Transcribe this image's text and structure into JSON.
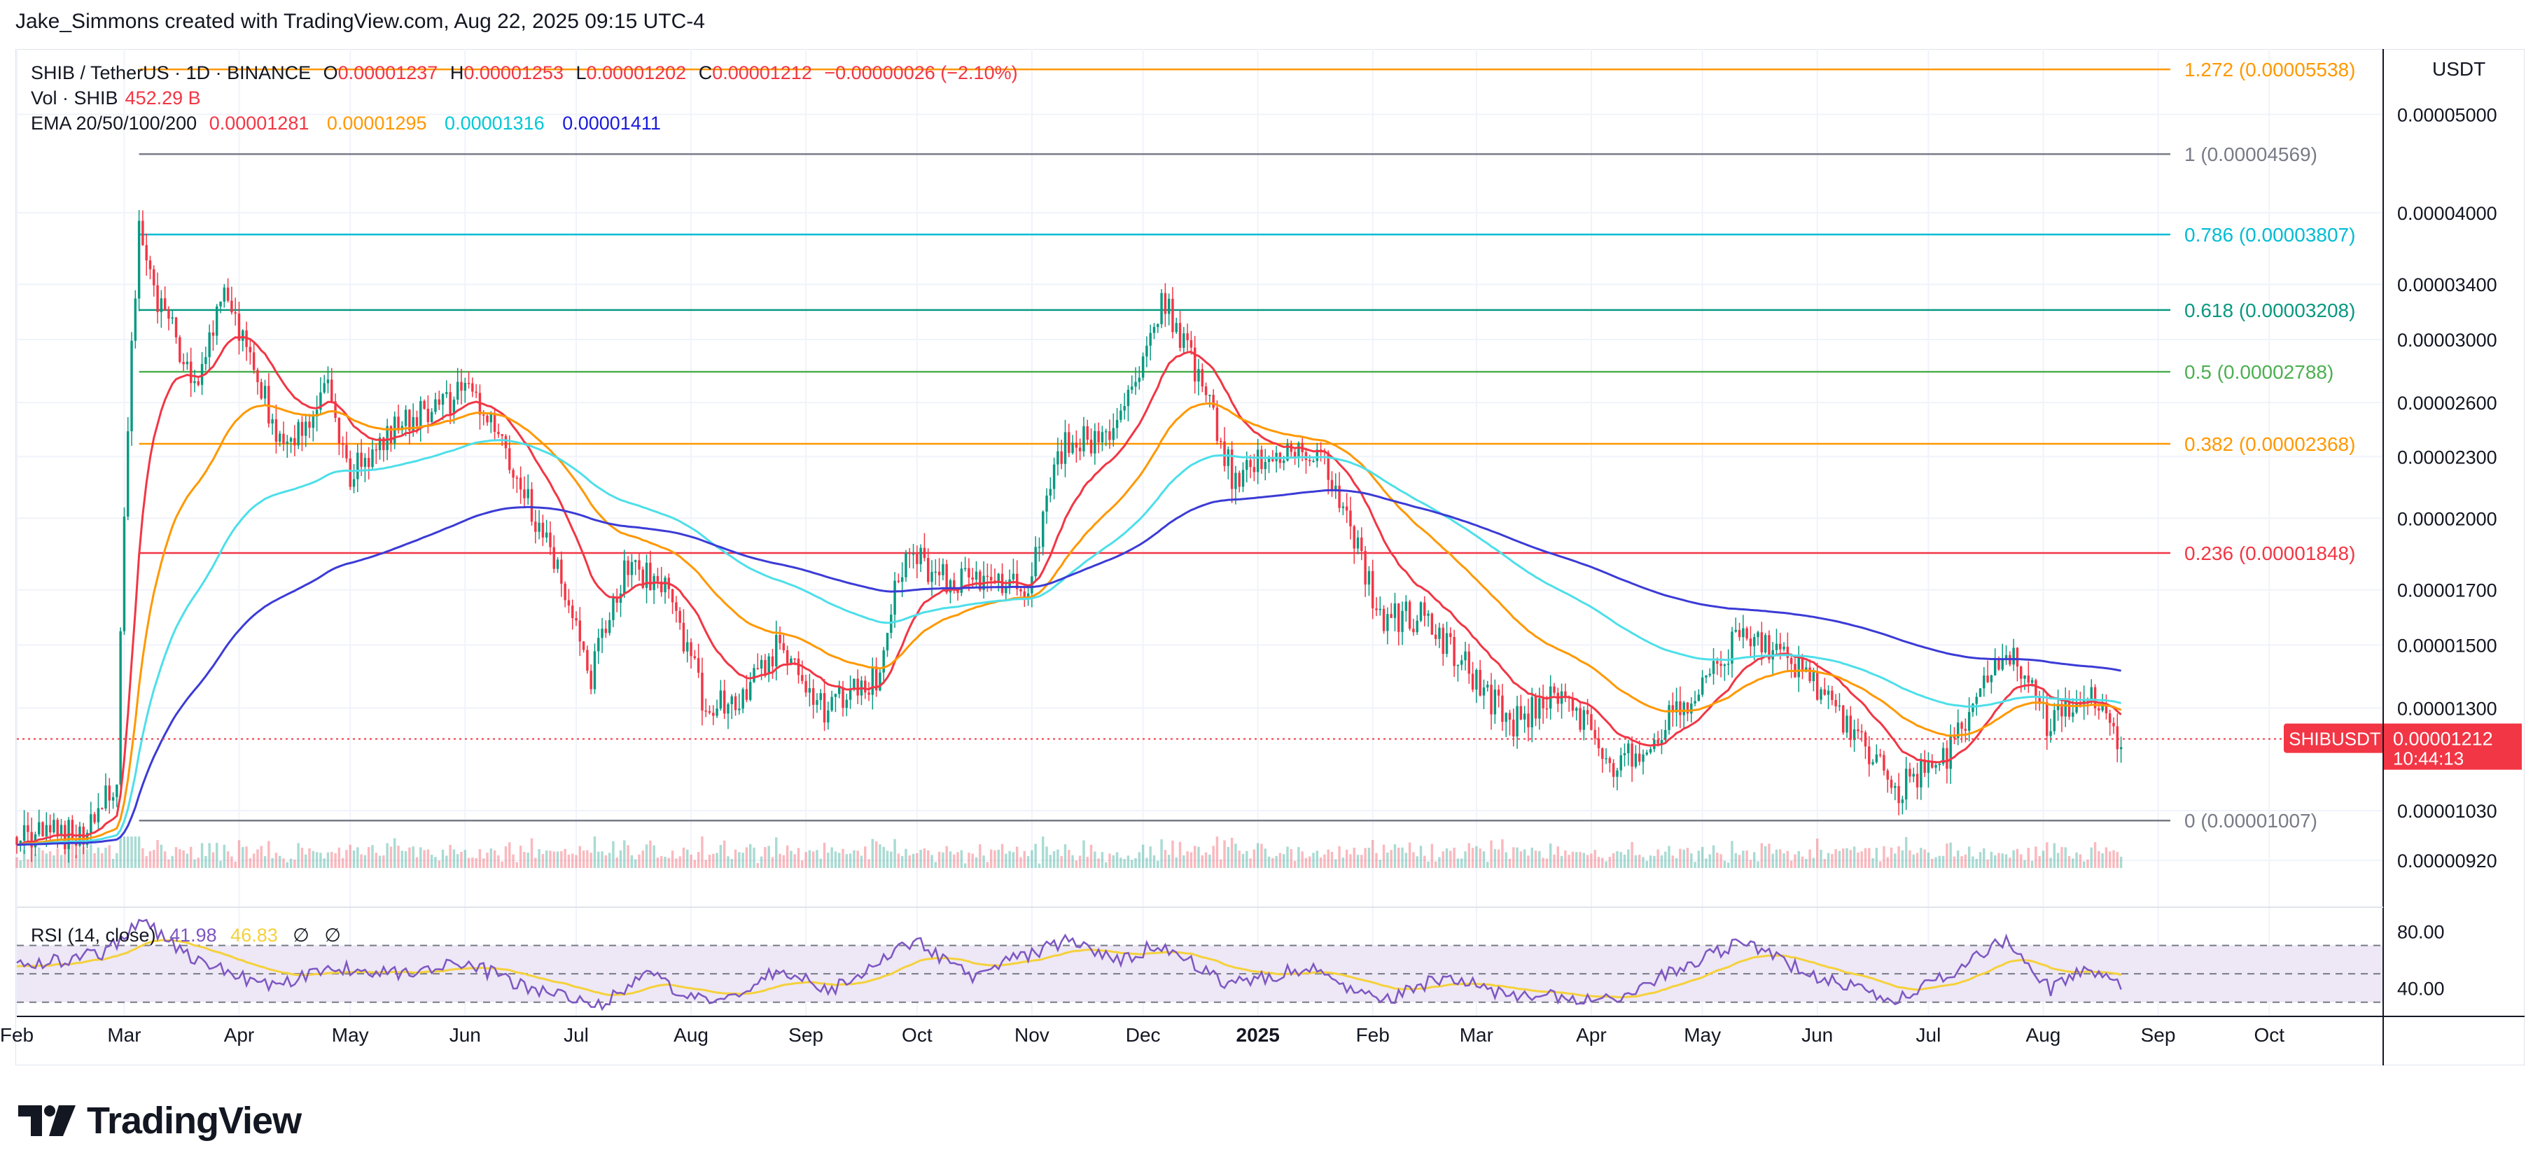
{
  "credit": "Jake_Simmons created with TradingView.com, Aug 22, 2025 09:15 UTC-4",
  "legend": {
    "symbol": "SHIB / TetherUS · 1D · BINANCE",
    "open_k": "O",
    "open": "0.00001237",
    "high_k": "H",
    "high": "0.00001253",
    "low_k": "L",
    "low": "0.00001202",
    "close_k": "C",
    "close": "0.00001212",
    "change": "−0.00000026 (−2.10%)",
    "vol_label": "Vol · SHIB",
    "vol_value": "452.29 B",
    "ema_label": "EMA 20/50/100/200",
    "ema_values": [
      "0.00001281",
      "0.00001295",
      "0.00001316",
      "0.00001411"
    ]
  },
  "currency": "USDT",
  "last_price": {
    "symbol": "SHIBUSDT",
    "price": "0.00001212",
    "countdown": "10:44:13"
  },
  "rsi_legend": {
    "label": "RSI (14, close)",
    "value": "41.98",
    "ma": "46.83",
    "extra": [
      "∅",
      "∅"
    ]
  },
  "logo_text": "TradingView",
  "colors": {
    "up": "#089981",
    "down": "#f23645",
    "ema20": "#f23645",
    "ema50": "#ff9800",
    "ema100": "#4ddfe9",
    "ema200": "#3b3bd6",
    "rsi": "#7e57c2",
    "rsi_ma": "#f5d13b",
    "rsi_band": "#ede7f6"
  },
  "chart_data": [
    {
      "type": "candlestick",
      "title": "SHIB / TetherUS · 1D · BINANCE",
      "y_axis_side": "right",
      "y_scale": "log",
      "ylim": [
        8.9e-06,
        5.8e-05
      ],
      "y_ticks": [
        "0.00005000",
        "0.00004000",
        "0.00003400",
        "0.00003000",
        "0.00002600",
        "0.00002300",
        "0.00002000",
        "0.00001700",
        "0.00001500",
        "0.00001300",
        "0.00001030",
        "0.00000920"
      ],
      "x_ticks": [
        "Feb",
        "Mar",
        "Apr",
        "May",
        "Jun",
        "Jul",
        "Aug",
        "Sep",
        "Oct",
        "Nov",
        "Dec",
        "2025",
        "Feb",
        "Mar",
        "Apr",
        "May",
        "Jun",
        "Jul",
        "Aug",
        "Sep",
        "Oct"
      ],
      "x_range": [
        "2024-02-01",
        "2025-10-31"
      ],
      "price_path": [
        [
          "2024-02-01",
          9.7e-06
        ],
        [
          "2024-02-20",
          9.8e-06
        ],
        [
          "2024-02-28",
          1.1e-05
        ],
        [
          "2024-03-01",
          2e-05
        ],
        [
          "2024-03-05",
          3.8e-05
        ],
        [
          "2024-03-10",
          3.3e-05
        ],
        [
          "2024-03-20",
          2.7e-05
        ],
        [
          "2024-03-28",
          3.3e-05
        ],
        [
          "2024-04-05",
          2.8e-05
        ],
        [
          "2024-04-13",
          2.3e-05
        ],
        [
          "2024-04-25",
          2.7e-05
        ],
        [
          "2024-05-01",
          2.2e-05
        ],
        [
          "2024-05-15",
          2.5e-05
        ],
        [
          "2024-05-28",
          2.6e-05
        ],
        [
          "2024-06-01",
          2.7e-05
        ],
        [
          "2024-06-15",
          2.2e-05
        ],
        [
          "2024-06-25",
          1.8e-05
        ],
        [
          "2024-07-05",
          1.4e-05
        ],
        [
          "2024-07-15",
          1.8e-05
        ],
        [
          "2024-07-25",
          1.7e-05
        ],
        [
          "2024-08-05",
          1.3e-05
        ],
        [
          "2024-08-15",
          1.35e-05
        ],
        [
          "2024-08-25",
          1.5e-05
        ],
        [
          "2024-09-06",
          1.3e-05
        ],
        [
          "2024-09-20",
          1.4e-05
        ],
        [
          "2024-09-28",
          1.85e-05
        ],
        [
          "2024-10-10",
          1.72e-05
        ],
        [
          "2024-10-25",
          1.75e-05
        ],
        [
          "2024-10-31",
          1.7e-05
        ],
        [
          "2024-11-10",
          2.4e-05
        ],
        [
          "2024-11-20",
          2.4e-05
        ],
        [
          "2024-12-01",
          2.8e-05
        ],
        [
          "2024-12-06",
          3.3e-05
        ],
        [
          "2024-12-15",
          2.8e-05
        ],
        [
          "2024-12-25",
          2.2e-05
        ],
        [
          "2025-01-05",
          2.3e-05
        ],
        [
          "2025-01-18",
          2.3e-05
        ],
        [
          "2025-01-27",
          1.9e-05
        ],
        [
          "2025-02-03",
          1.6e-05
        ],
        [
          "2025-02-15",
          1.6e-05
        ],
        [
          "2025-02-28",
          1.4e-05
        ],
        [
          "2025-03-10",
          1.25e-05
        ],
        [
          "2025-03-25",
          1.35e-05
        ],
        [
          "2025-04-07",
          1.12e-05
        ],
        [
          "2025-04-20",
          1.25e-05
        ],
        [
          "2025-05-01",
          1.35e-05
        ],
        [
          "2025-05-12",
          1.55e-05
        ],
        [
          "2025-05-22",
          1.48e-05
        ],
        [
          "2025-06-05",
          1.3e-05
        ],
        [
          "2025-06-22",
          1.08e-05
        ],
        [
          "2025-07-05",
          1.15e-05
        ],
        [
          "2025-07-15",
          1.35e-05
        ],
        [
          "2025-07-22",
          1.5e-05
        ],
        [
          "2025-08-02",
          1.25e-05
        ],
        [
          "2025-08-12",
          1.35e-05
        ],
        [
          "2025-08-22",
          1.21e-05
        ]
      ],
      "fibonacci": [
        {
          "label": "1.272 (0.00005538)",
          "level": 5.538e-05,
          "color": "#ff9800"
        },
        {
          "label": "1 (0.00004569)",
          "level": 4.569e-05,
          "color": "#787b86"
        },
        {
          "label": "0.786 (0.00003807)",
          "level": 3.807e-05,
          "color": "#00bcd4"
        },
        {
          "label": "0.618 (0.00003208)",
          "level": 3.208e-05,
          "color": "#089981"
        },
        {
          "label": "0.5 (0.00002788)",
          "level": 2.788e-05,
          "color": "#4caf50"
        },
        {
          "label": "0.382 (0.00002368)",
          "level": 2.368e-05,
          "color": "#ff9800"
        },
        {
          "label": "0.236 (0.00001848)",
          "level": 1.848e-05,
          "color": "#f23645"
        },
        {
          "label": "0 (0.00001007)",
          "level": 1.007e-05,
          "color": "#787b86"
        }
      ],
      "last_close": 1.212e-05
    },
    {
      "type": "line",
      "title": "RSI (14, close)",
      "ylim": [
        20,
        90
      ],
      "y_ticks": [
        "80.00",
        "40.00"
      ],
      "bands": [
        70,
        50,
        30
      ],
      "last_rsi": 41.98,
      "last_rsi_ma": 46.83,
      "rsi_path": [
        [
          "2024-02-01",
          55
        ],
        [
          "2024-02-25",
          65
        ],
        [
          "2024-03-05",
          88
        ],
        [
          "2024-03-20",
          60
        ],
        [
          "2024-04-10",
          40
        ],
        [
          "2024-04-25",
          55
        ],
        [
          "2024-05-15",
          50
        ],
        [
          "2024-06-01",
          58
        ],
        [
          "2024-06-20",
          38
        ],
        [
          "2024-07-08",
          28
        ],
        [
          "2024-07-20",
          50
        ],
        [
          "2024-08-06",
          28
        ],
        [
          "2024-08-25",
          52
        ],
        [
          "2024-09-08",
          38
        ],
        [
          "2024-09-30",
          74
        ],
        [
          "2024-10-15",
          48
        ],
        [
          "2024-11-12",
          75
        ],
        [
          "2024-11-25",
          58
        ],
        [
          "2024-12-05",
          72
        ],
        [
          "2024-12-25",
          42
        ],
        [
          "2025-01-15",
          55
        ],
        [
          "2025-02-03",
          30
        ],
        [
          "2025-02-20",
          48
        ],
        [
          "2025-03-10",
          35
        ],
        [
          "2025-04-07",
          32
        ],
        [
          "2025-04-25",
          55
        ],
        [
          "2025-05-12",
          72
        ],
        [
          "2025-05-30",
          50
        ],
        [
          "2025-06-22",
          32
        ],
        [
          "2025-07-05",
          48
        ],
        [
          "2025-07-22",
          74
        ],
        [
          "2025-08-03",
          38
        ],
        [
          "2025-08-12",
          55
        ],
        [
          "2025-08-22",
          41.98
        ]
      ]
    }
  ]
}
